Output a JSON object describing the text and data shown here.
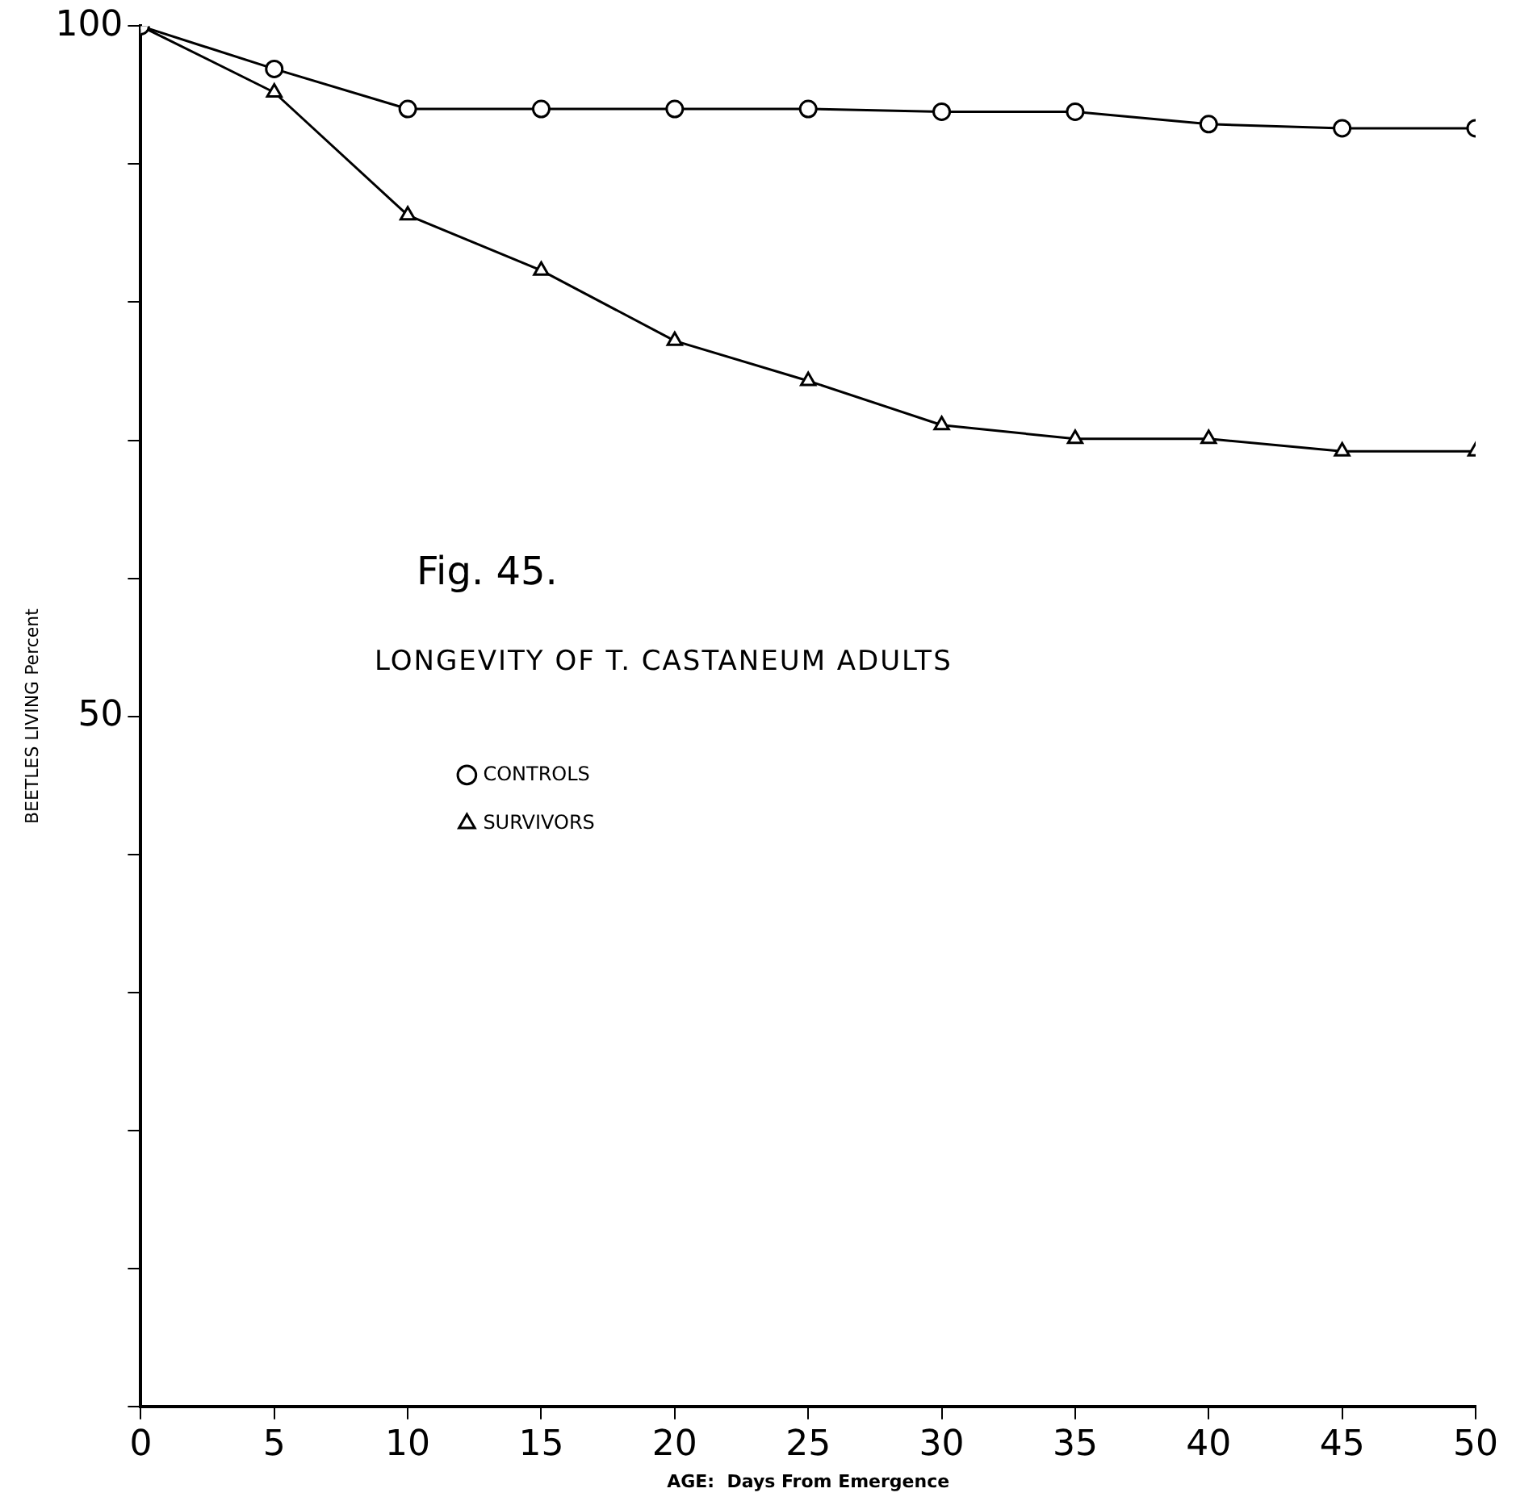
{
  "chart_data": {
    "type": "line",
    "title": "Fig. 45.",
    "subtitle": "LONGEVITY OF T. CASTANEUM ADULTS",
    "xlabel": "AGE:  Days From Emergence",
    "ylabel": "BEETLES LIVING Percent",
    "x": [
      0,
      5,
      10,
      15,
      20,
      25,
      30,
      35,
      40,
      45,
      50
    ],
    "series": [
      {
        "name": "CONTROLS",
        "color": "#000000",
        "marker": "circle",
        "values": [
          100,
          96.9,
          94,
          94,
          94,
          94,
          93.8,
          93.8,
          92.9,
          92.6,
          92.6
        ]
      },
      {
        "name": "SURVIVORS",
        "color": "#000000",
        "marker": "triangle",
        "values": [
          100,
          95.2,
          86.3,
          82.3,
          77.2,
          74.3,
          71.1,
          70.1,
          70.1,
          69.2,
          69.2
        ]
      }
    ],
    "xlim": [
      0,
      50
    ],
    "xticks": [
      0,
      5,
      10,
      15,
      20,
      25,
      30,
      35,
      40,
      45,
      50
    ],
    "ylim": [
      0,
      100
    ],
    "yticks": [
      {
        "value": 0,
        "label": null
      },
      {
        "value": 10,
        "label": null
      },
      {
        "value": 20,
        "label": null
      },
      {
        "value": 30,
        "label": null
      },
      {
        "value": 40,
        "label": null
      },
      50,
      {
        "value": 60,
        "label": null
      },
      {
        "value": 70,
        "label": null
      },
      {
        "value": 80,
        "label": null
      },
      {
        "value": 90,
        "label": null
      },
      100
    ],
    "grid": false,
    "legend": "left",
    "line_style": "solid"
  }
}
